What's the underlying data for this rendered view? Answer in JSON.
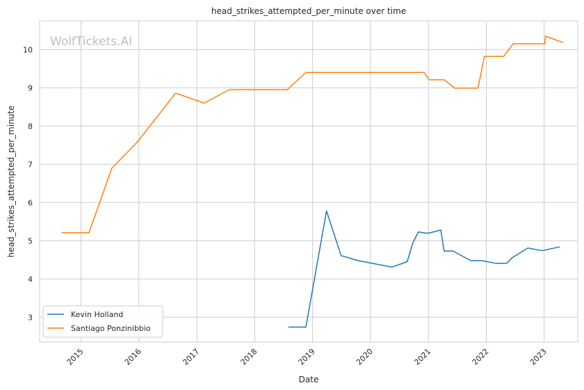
{
  "chart_data": {
    "type": "line",
    "title": "head_strikes_attempted_per_minute over time",
    "xlabel": "Date",
    "ylabel": "head_strikes_attempted_per_minute",
    "watermark": "WolfTickets.AI",
    "xlim": [
      "2014-04-15",
      "2023-08-01"
    ],
    "ylim": [
      2.35,
      10.75
    ],
    "x_ticks": [
      "2015",
      "2016",
      "2017",
      "2018",
      "2019",
      "2020",
      "2021",
      "2022",
      "2023"
    ],
    "y_ticks": [
      3,
      4,
      5,
      6,
      7,
      8,
      9,
      10
    ],
    "grid": true,
    "legend_position": "lower-left",
    "series": [
      {
        "name": "Kevin Holland",
        "color": "#1f77b4",
        "points": [
          [
            "2018-08-01",
            2.74
          ],
          [
            "2018-11-20",
            2.74
          ],
          [
            "2019-03-30",
            5.78
          ],
          [
            "2019-06-30",
            4.61
          ],
          [
            "2019-10-15",
            4.48
          ],
          [
            "2020-05-15",
            4.31
          ],
          [
            "2020-08-20",
            4.45
          ],
          [
            "2020-09-25",
            4.95
          ],
          [
            "2020-10-30",
            5.23
          ],
          [
            "2020-12-10",
            5.2
          ],
          [
            "2021-01-05",
            5.2
          ],
          [
            "2021-03-20",
            5.28
          ],
          [
            "2021-04-10",
            4.73
          ],
          [
            "2021-06-05",
            4.73
          ],
          [
            "2021-09-25",
            4.48
          ],
          [
            "2021-12-01",
            4.48
          ],
          [
            "2022-03-01",
            4.41
          ],
          [
            "2022-05-10",
            4.41
          ],
          [
            "2022-06-15",
            4.56
          ],
          [
            "2022-09-20",
            4.81
          ],
          [
            "2022-12-20",
            4.74
          ],
          [
            "2023-04-10",
            4.84
          ]
        ]
      },
      {
        "name": "Santiago Ponzinibbio",
        "color": "#ff7f0e",
        "points": [
          [
            "2014-09-01",
            5.21
          ],
          [
            "2015-02-20",
            5.21
          ],
          [
            "2015-07-15",
            6.9
          ],
          [
            "2015-12-20",
            7.57
          ],
          [
            "2016-08-20",
            8.86
          ],
          [
            "2017-02-15",
            8.6
          ],
          [
            "2017-07-25",
            8.95
          ],
          [
            "2018-07-25",
            8.95
          ],
          [
            "2018-11-20",
            9.4
          ],
          [
            "2020-12-05",
            9.4
          ],
          [
            "2021-01-05",
            9.21
          ],
          [
            "2021-04-10",
            9.21
          ],
          [
            "2021-06-15",
            8.99
          ],
          [
            "2021-11-10",
            8.99
          ],
          [
            "2021-12-20",
            9.82
          ],
          [
            "2022-04-20",
            9.82
          ],
          [
            "2022-06-20",
            10.15
          ],
          [
            "2023-01-05",
            10.15
          ],
          [
            "2023-01-10",
            10.35
          ],
          [
            "2023-05-01",
            10.18
          ]
        ]
      }
    ]
  }
}
